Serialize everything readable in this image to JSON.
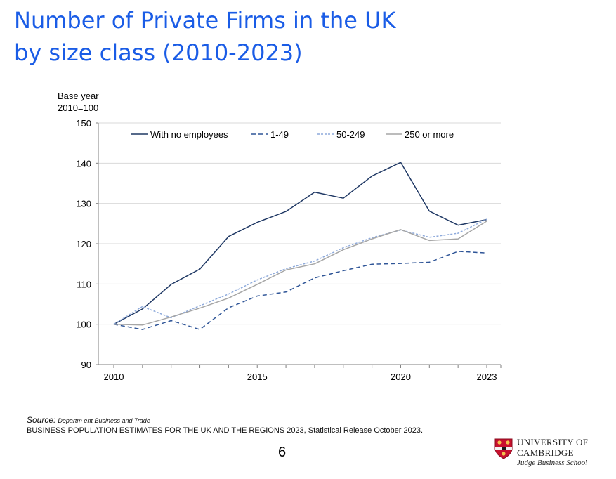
{
  "title": {
    "line1": "Number of Private Firms in the UK",
    "line2": "by size class (2010-2023)"
  },
  "chart_data": {
    "type": "line",
    "ylabel_line1": "Base year",
    "ylabel_line2": "2010=100",
    "ylim": [
      90,
      150
    ],
    "yticks": [
      90,
      100,
      110,
      120,
      130,
      140,
      150
    ],
    "xlim": [
      2010,
      2023
    ],
    "xtick_labels": [
      "2010",
      "2015",
      "2020",
      "2023"
    ],
    "x": [
      2010,
      2011,
      2012,
      2013,
      2014,
      2015,
      2016,
      2017,
      2018,
      2019,
      2020,
      2021,
      2022,
      2023
    ],
    "grid": "horizontal",
    "legend_position": "top",
    "series": [
      {
        "name": "With no employees",
        "color": "#1f3864",
        "style": "solid",
        "values": [
          100,
          103.8,
          109.9,
          113.7,
          121.8,
          125.3,
          128.0,
          132.8,
          131.3,
          136.8,
          140.2,
          128.1,
          124.6,
          126.0
        ]
      },
      {
        "name": "1-49",
        "color": "#2f5597",
        "style": "dashed",
        "values": [
          100,
          98.7,
          100.9,
          98.7,
          104.1,
          107.0,
          108.0,
          111.5,
          113.3,
          114.9,
          115.1,
          115.4,
          118.1,
          117.7
        ]
      },
      {
        "name": "50-249",
        "color": "#8eaadb",
        "style": "dotted",
        "values": [
          100,
          104.4,
          101.6,
          104.6,
          107.5,
          111.0,
          113.8,
          115.7,
          119.0,
          121.5,
          123.4,
          121.6,
          122.6,
          126.1
        ]
      },
      {
        "name": "250 or more",
        "color": "#a6a6a6",
        "style": "solid",
        "values": [
          100,
          99.8,
          101.8,
          104.0,
          106.5,
          109.9,
          113.5,
          115.0,
          118.5,
          121.2,
          123.5,
          120.8,
          121.2,
          125.6
        ]
      }
    ]
  },
  "source": {
    "label": "Source:",
    "org": "Departm ent Business and Trade",
    "detail": "BUSINESS POPULATION ESTIMATES FOR THE UK AND THE REGIONS 2023, Statistical Release October 2023."
  },
  "page_number": "6",
  "logo": {
    "line1": "UNIVERSITY OF",
    "line2": "CAMBRIDGE",
    "line3": "Judge Business School",
    "accent_color": "#c8102e"
  }
}
